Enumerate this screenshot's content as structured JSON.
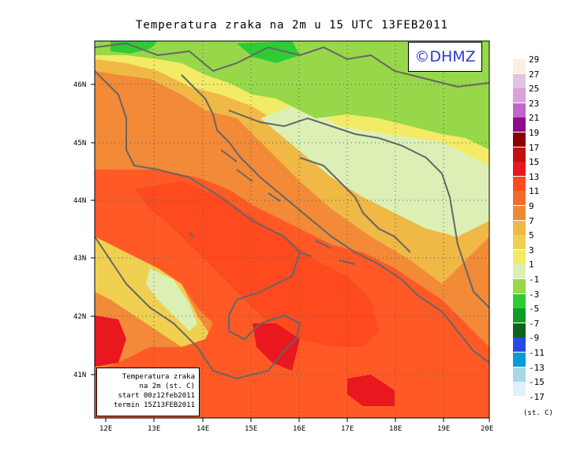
{
  "title": "Temperatura zraka na 2m u 15 UTC 13FEB2011",
  "credit": "©DHMZ",
  "info_box": [
    "Temperatura zraka",
    "na 2m (st. C)",
    "start 00z12feb2011",
    "termin 15Z13FEB2011"
  ],
  "lat_labels": [
    "46N",
    "45N",
    "44N",
    "43N",
    "42N",
    "41N"
  ],
  "lon_labels": [
    "12E",
    "13E",
    "14E",
    "15E",
    "16E",
    "17E",
    "18E",
    "19E",
    "20E"
  ],
  "legend": {
    "units": "(st. C)",
    "labels": [
      "29",
      "27",
      "25",
      "23",
      "21",
      "19",
      "17",
      "15",
      "13",
      "11",
      "9",
      "7",
      "5",
      "3",
      "1",
      "-1",
      "-3",
      "-5",
      "-7",
      "-9",
      "-11",
      "-13",
      "-15",
      "-17"
    ],
    "colors": [
      "#fdeee2",
      "#e0c4e0",
      "#d9a0d9",
      "#c264c8",
      "#8e0a8e",
      "#8c0000",
      "#c01010",
      "#e8181e",
      "#ff4a20",
      "#f56a2a",
      "#ec8a32",
      "#f0b845",
      "#f0d050",
      "#f3ea66",
      "#dcf0b6",
      "#96d84a",
      "#2ecc34",
      "#119c26",
      "#0b6618",
      "#2a48e8",
      "#0a9ad8",
      "#a8d8e6",
      "#def2f8"
    ]
  },
  "colors": {
    "sea": "#ff5a26",
    "sea_warm": "#ff3c1e",
    "coast_warm": "#f28a38",
    "land_mild": "#f0d050",
    "land_cool": "#dcf0b6",
    "land_green": "#96d84a",
    "land_dark_green": "#2ecc34",
    "coastline": "#666666"
  }
}
